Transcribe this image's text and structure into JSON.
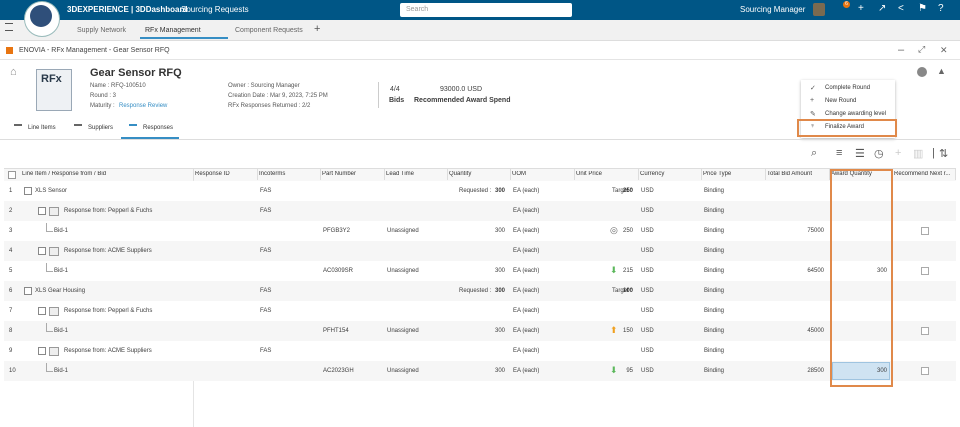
{
  "topbar": {
    "brand": "3DEXPERIENCE | 3DDashboard",
    "app": "Sourcing Requests",
    "search": "Search",
    "user": "Sourcing Manager",
    "badge": "6"
  },
  "tabs": [
    "Supply Network",
    "RFx Management",
    "Component Requests"
  ],
  "breadcrumb": "ENOVIA - RFx Management - Gear Sensor RFQ",
  "header": {
    "icon": "RFx",
    "title": "Gear Sensor RFQ",
    "left": [
      "Name : RFQ-100510",
      "Round : 3",
      "Maturity : "
    ],
    "maturity": "Response Review",
    "middle": [
      "Owner : Sourcing Manager",
      "Creation Date : Mar 9, 2023, 7:25 PM",
      "RFx Responses Returned : 2/2"
    ],
    "bids": "4/4",
    "bids_label": "Bids",
    "spend": "93000.0 USD",
    "spend_label": "Recommended Award Spend"
  },
  "menu": [
    "Complete Round",
    "New Round",
    "Change awarding level",
    "Finalize Award"
  ],
  "subtabs": [
    "Line Items",
    "Suppliers",
    "Responses"
  ],
  "table": {
    "columns": [
      "Line Item / Response from / Bid",
      "Response ID",
      "Incoterms",
      "Part Number",
      "Lead Time",
      "Quantity",
      "UOM",
      "Unit Price",
      "Currency",
      "Price Type",
      "Total Bid Amount",
      "Award Quantity",
      "Recommend Next r..."
    ],
    "rows": [
      {
        "num": "1",
        "item": "XLS Sensor",
        "incoterms": "FAS",
        "qty_label": "Requested :",
        "qty": "300",
        "uom": "EA (each)",
        "price_label": "Target :",
        "price": "250",
        "currency": "USD",
        "price_type": "Binding"
      },
      {
        "num": "2",
        "item": "Response from: Pepperl & Fuchs",
        "incoterms": "FAS",
        "uom": "EA (each)",
        "currency": "USD",
        "price_type": "Binding"
      },
      {
        "num": "3",
        "item": "Bid-1",
        "part": "PFGB3Y2",
        "lead": "Unassigned",
        "qty": "300",
        "uom": "EA (each)",
        "price": "250",
        "currency": "USD",
        "price_type": "Binding",
        "total": "75000"
      },
      {
        "num": "4",
        "item": "Response from: ACME Suppliers",
        "incoterms": "FAS",
        "uom": "EA (each)",
        "currency": "USD",
        "price_type": "Binding"
      },
      {
        "num": "5",
        "item": "Bid-1",
        "part": "AC0309SR",
        "lead": "Unassigned",
        "qty": "300",
        "uom": "EA (each)",
        "price": "215",
        "currency": "USD",
        "price_type": "Binding",
        "total": "64500",
        "award": "300"
      },
      {
        "num": "6",
        "item": "XLS Gear Housing",
        "incoterms": "FAS",
        "qty_label": "Requested :",
        "qty": "300",
        "uom": "EA (each)",
        "price_label": "Target :",
        "price": "100",
        "currency": "USD",
        "price_type": "Binding"
      },
      {
        "num": "7",
        "item": "Response from: Pepperl & Fuchs",
        "incoterms": "FAS",
        "uom": "EA (each)",
        "currency": "USD",
        "price_type": "Binding"
      },
      {
        "num": "8",
        "item": "Bid-1",
        "part": "PFHT154",
        "lead": "Unassigned",
        "qty": "300",
        "uom": "EA (each)",
        "price": "150",
        "currency": "USD",
        "price_type": "Binding",
        "total": "45000"
      },
      {
        "num": "9",
        "item": "Response from: ACME Suppliers",
        "incoterms": "FAS",
        "uom": "EA (each)",
        "currency": "USD",
        "price_type": "Binding"
      },
      {
        "num": "10",
        "item": "Bid-1",
        "part": "AC2023GH",
        "lead": "Unassigned",
        "qty": "300",
        "uom": "EA (each)",
        "price": "95",
        "currency": "USD",
        "price_type": "Binding",
        "total": "28500",
        "award": "300"
      }
    ]
  }
}
